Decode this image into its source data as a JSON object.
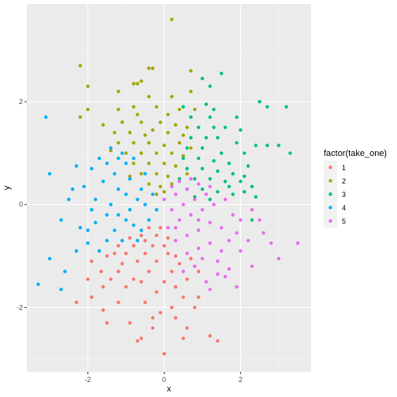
{
  "chart_data": {
    "type": "scatter",
    "title": "",
    "xlabel": "x",
    "ylabel": "y",
    "xlim": [
      -3.6,
      3.85
    ],
    "ylim": [
      -3.25,
      3.9
    ],
    "xticks": [
      -2,
      0,
      2
    ],
    "xtick_labels": [
      "-2",
      "0",
      "2"
    ],
    "yticks": [
      -2,
      0,
      2
    ],
    "ytick_labels": [
      "-2",
      "0",
      "2"
    ],
    "grid": true,
    "background": "#ebebeb",
    "legend": {
      "title": "factor(take_one)",
      "placement": "right"
    },
    "series": [
      {
        "name": "1",
        "color": "#f8766d",
        "points": [
          [
            0.0,
            -2.9
          ],
          [
            -0.7,
            -2.65
          ],
          [
            -0.6,
            -2.6
          ],
          [
            0.5,
            -2.6
          ],
          [
            1.2,
            -2.55
          ],
          [
            1.4,
            -2.65
          ],
          [
            -0.9,
            -2.3
          ],
          [
            -1.5,
            -2.3
          ],
          [
            -0.3,
            -2.2
          ],
          [
            0.3,
            -2.2
          ],
          [
            0.6,
            -2.4
          ],
          [
            -1.6,
            -2.05
          ],
          [
            -0.1,
            -2.1
          ],
          [
            0.2,
            -2.0
          ],
          [
            -2.3,
            -1.9
          ],
          [
            -1.9,
            -1.8
          ],
          [
            -1.2,
            -1.9
          ],
          [
            -0.5,
            -1.9
          ],
          [
            0.5,
            -1.8
          ],
          [
            0.9,
            -1.8
          ],
          [
            -1.6,
            -1.6
          ],
          [
            -1.0,
            -1.6
          ],
          [
            -0.2,
            -1.7
          ],
          [
            0.3,
            -1.6
          ],
          [
            -2.0,
            -1.45
          ],
          [
            -1.4,
            -1.45
          ],
          [
            -0.8,
            -1.45
          ],
          [
            -0.6,
            -1.5
          ],
          [
            0.0,
            -1.5
          ],
          [
            0.6,
            -1.45
          ],
          [
            -1.65,
            -1.3
          ],
          [
            -1.2,
            -1.3
          ],
          [
            -0.4,
            -1.3
          ],
          [
            0.2,
            -1.3
          ],
          [
            0.9,
            -1.3
          ],
          [
            -1.9,
            -1.1
          ],
          [
            -1.1,
            -1.15
          ],
          [
            -0.7,
            -1.1
          ],
          [
            -0.2,
            -1.1
          ],
          [
            0.4,
            -1.15
          ],
          [
            -1.3,
            -0.95
          ],
          [
            -1.0,
            -0.95
          ],
          [
            -0.5,
            -0.95
          ],
          [
            0.1,
            -0.95
          ],
          [
            0.3,
            -1.0
          ],
          [
            -1.2,
            -0.8
          ],
          [
            -0.8,
            -0.8
          ],
          [
            -0.3,
            -0.8
          ],
          [
            0.0,
            -0.8
          ],
          [
            -0.9,
            -0.65
          ],
          [
            -0.6,
            -0.6
          ],
          [
            -0.2,
            -0.6
          ],
          [
            0.1,
            -0.65
          ],
          [
            -0.4,
            -0.45
          ],
          [
            -0.1,
            -0.45
          ],
          [
            -0.5,
            -0.7
          ],
          [
            -1.5,
            -1.0
          ],
          [
            0.7,
            -1.05
          ],
          [
            -0.3,
            -2.4
          ],
          [
            0.8,
            -2.0
          ]
        ]
      },
      {
        "name": "2",
        "color": "#a3a500",
        "points": [
          [
            0.2,
            3.6
          ],
          [
            -2.2,
            2.7
          ],
          [
            -0.4,
            2.65
          ],
          [
            -0.3,
            2.65
          ],
          [
            0.7,
            2.6
          ],
          [
            -2.0,
            2.3
          ],
          [
            -0.8,
            2.35
          ],
          [
            -0.6,
            2.4
          ],
          [
            -0.7,
            2.35
          ],
          [
            -1.2,
            2.2
          ],
          [
            -0.4,
            2.1
          ],
          [
            0.2,
            2.1
          ],
          [
            0.7,
            2.2
          ],
          [
            -2.0,
            1.85
          ],
          [
            -1.2,
            1.85
          ],
          [
            -0.8,
            1.9
          ],
          [
            -0.2,
            1.9
          ],
          [
            0.4,
            1.85
          ],
          [
            0.8,
            1.85
          ],
          [
            -2.2,
            1.7
          ],
          [
            -1.6,
            1.55
          ],
          [
            -1.1,
            1.6
          ],
          [
            -0.6,
            1.6
          ],
          [
            -0.1,
            1.6
          ],
          [
            0.3,
            1.55
          ],
          [
            0.6,
            1.5
          ],
          [
            -1.3,
            1.4
          ],
          [
            -0.9,
            1.4
          ],
          [
            -0.5,
            1.35
          ],
          [
            0.1,
            1.4
          ],
          [
            0.5,
            1.35
          ],
          [
            -1.2,
            1.2
          ],
          [
            -0.8,
            1.2
          ],
          [
            -0.4,
            1.2
          ],
          [
            0.0,
            1.15
          ],
          [
            0.4,
            1.2
          ],
          [
            -1.0,
            1.0
          ],
          [
            -0.6,
            1.0
          ],
          [
            -0.2,
            1.0
          ],
          [
            0.2,
            1.0
          ],
          [
            0.5,
            0.95
          ],
          [
            -0.8,
            0.8
          ],
          [
            -0.4,
            0.8
          ],
          [
            0.0,
            0.8
          ],
          [
            0.3,
            0.75
          ],
          [
            -0.6,
            0.6
          ],
          [
            -0.2,
            0.6
          ],
          [
            0.1,
            0.55
          ],
          [
            -0.4,
            0.4
          ],
          [
            -0.1,
            0.35
          ],
          [
            0.2,
            0.4
          ],
          [
            -0.2,
            0.2
          ],
          [
            0.0,
            0.25
          ],
          [
            -0.7,
            1.75
          ],
          [
            0.1,
            1.75
          ],
          [
            -0.3,
            1.45
          ],
          [
            0.7,
            1.1
          ],
          [
            -1.4,
            1.05
          ],
          [
            -0.9,
            0.55
          ],
          [
            0.6,
            0.6
          ]
        ]
      },
      {
        "name": "3",
        "color": "#00bf7d",
        "points": [
          [
            1.0,
            2.45
          ],
          [
            1.5,
            2.55
          ],
          [
            1.2,
            2.3
          ],
          [
            2.5,
            2.0
          ],
          [
            2.7,
            1.9
          ],
          [
            3.2,
            1.9
          ],
          [
            1.1,
            1.95
          ],
          [
            0.7,
            1.7
          ],
          [
            1.2,
            1.7
          ],
          [
            1.9,
            1.7
          ],
          [
            0.9,
            1.5
          ],
          [
            1.3,
            1.5
          ],
          [
            1.6,
            1.5
          ],
          [
            2.0,
            1.45
          ],
          [
            0.7,
            1.3
          ],
          [
            1.1,
            1.3
          ],
          [
            1.4,
            1.3
          ],
          [
            1.9,
            1.2
          ],
          [
            2.4,
            1.15
          ],
          [
            2.7,
            1.15
          ],
          [
            3.0,
            1.15
          ],
          [
            3.3,
            1.0
          ],
          [
            0.6,
            1.1
          ],
          [
            1.0,
            1.1
          ],
          [
            1.5,
            1.0
          ],
          [
            2.1,
            1.0
          ],
          [
            0.5,
            0.9
          ],
          [
            0.9,
            0.9
          ],
          [
            1.3,
            0.85
          ],
          [
            1.7,
            0.8
          ],
          [
            2.2,
            0.75
          ],
          [
            0.6,
            0.7
          ],
          [
            1.0,
            0.7
          ],
          [
            1.4,
            0.65
          ],
          [
            1.8,
            0.6
          ],
          [
            0.4,
            0.5
          ],
          [
            0.8,
            0.5
          ],
          [
            1.2,
            0.5
          ],
          [
            1.6,
            0.45
          ],
          [
            2.0,
            0.45
          ],
          [
            2.3,
            0.35
          ],
          [
            2.4,
            0.15
          ],
          [
            0.6,
            0.3
          ],
          [
            1.0,
            0.3
          ],
          [
            1.4,
            0.25
          ],
          [
            1.8,
            0.2
          ],
          [
            2.1,
            0.25
          ],
          [
            0.8,
            0.15
          ],
          [
            1.2,
            0.1
          ],
          [
            2.3,
            -0.3
          ],
          [
            1.7,
            0.35
          ],
          [
            1.3,
            1.85
          ],
          [
            0.5,
            1.9
          ],
          [
            2.1,
            0.55
          ]
        ]
      },
      {
        "name": "4",
        "color": "#00b0f6",
        "points": [
          [
            -3.1,
            1.7
          ],
          [
            -3.0,
            0.6
          ],
          [
            -3.3,
            -1.55
          ],
          [
            -3.0,
            -1.05
          ],
          [
            -2.7,
            -1.65
          ],
          [
            -2.6,
            -1.3
          ],
          [
            -2.7,
            -0.3
          ],
          [
            -2.3,
            0.75
          ],
          [
            -2.1,
            0.35
          ],
          [
            -2.5,
            0.1
          ],
          [
            -2.2,
            -0.45
          ],
          [
            -2.0,
            -0.5
          ],
          [
            -1.8,
            -0.35
          ],
          [
            -2.3,
            -0.9
          ],
          [
            -2.0,
            -0.75
          ],
          [
            -1.7,
            -0.9
          ],
          [
            -1.9,
            0.7
          ],
          [
            -1.7,
            0.9
          ],
          [
            -1.8,
            0.1
          ],
          [
            -1.5,
            -0.2
          ],
          [
            -1.4,
            1.1
          ],
          [
            -1.5,
            0.8
          ],
          [
            -1.3,
            0.6
          ],
          [
            -1.2,
            0.3
          ],
          [
            -1.4,
            0.0
          ],
          [
            -1.3,
            -0.5
          ],
          [
            -1.1,
            -0.7
          ],
          [
            -1.2,
            0.9
          ],
          [
            -1.0,
            0.8
          ],
          [
            -0.9,
            0.5
          ],
          [
            -1.0,
            0.2
          ],
          [
            -0.9,
            -0.1
          ],
          [
            -0.8,
            -0.4
          ],
          [
            -0.6,
            -0.5
          ],
          [
            -1.1,
            1.0
          ],
          [
            -0.8,
            0.9
          ],
          [
            -0.6,
            0.3
          ],
          [
            -0.5,
            0.0
          ],
          [
            -0.4,
            -0.3
          ],
          [
            -0.3,
            0.2
          ],
          [
            -0.2,
            -0.1
          ],
          [
            -1.6,
            0.45
          ],
          [
            -1.0,
            -0.3
          ],
          [
            -0.7,
            0.1
          ],
          [
            -1.9,
            -0.1
          ],
          [
            -2.4,
            0.3
          ],
          [
            -1.5,
            -0.7
          ],
          [
            -1.2,
            -0.2
          ],
          [
            -0.5,
            0.6
          ],
          [
            -0.7,
            -0.7
          ]
        ]
      },
      {
        "name": "5",
        "color": "#e76bf3",
        "points": [
          [
            3.5,
            -0.75
          ],
          [
            3.0,
            -1.05
          ],
          [
            2.8,
            -0.75
          ],
          [
            2.2,
            -0.7
          ],
          [
            1.9,
            -0.55
          ],
          [
            2.0,
            -0.9
          ],
          [
            1.7,
            -1.25
          ],
          [
            2.3,
            -1.2
          ],
          [
            1.4,
            -1.35
          ],
          [
            1.1,
            -1.5
          ],
          [
            1.2,
            -1.65
          ],
          [
            1.6,
            -1.4
          ],
          [
            1.9,
            -1.6
          ],
          [
            0.8,
            -1.2
          ],
          [
            0.6,
            -0.95
          ],
          [
            0.9,
            -0.85
          ],
          [
            1.2,
            -0.75
          ],
          [
            1.5,
            -0.9
          ],
          [
            1.7,
            -0.7
          ],
          [
            2.0,
            -0.3
          ],
          [
            2.3,
            -0.1
          ],
          [
            2.5,
            -0.3
          ],
          [
            1.8,
            -0.2
          ],
          [
            1.5,
            -0.45
          ],
          [
            1.2,
            -0.35
          ],
          [
            0.9,
            -0.5
          ],
          [
            0.6,
            -0.6
          ],
          [
            0.3,
            -0.7
          ],
          [
            0.1,
            -0.45
          ],
          [
            0.4,
            -0.3
          ],
          [
            0.7,
            -0.2
          ],
          [
            1.0,
            -0.1
          ],
          [
            1.3,
            0.0
          ],
          [
            1.6,
            0.1
          ],
          [
            0.2,
            -0.1
          ],
          [
            0.5,
            0.0
          ],
          [
            0.8,
            0.1
          ],
          [
            1.1,
            0.2
          ],
          [
            0.0,
            0.1
          ],
          [
            0.3,
            0.2
          ],
          [
            0.6,
            0.3
          ],
          [
            0.9,
            0.4
          ],
          [
            1.2,
            0.35
          ],
          [
            0.4,
            0.45
          ],
          [
            0.7,
            0.5
          ],
          [
            0.2,
            0.35
          ],
          [
            0.9,
            -0.3
          ],
          [
            1.4,
            -1.1
          ],
          [
            0.5,
            -1.3
          ],
          [
            1.0,
            -1.05
          ],
          [
            2.6,
            -0.55
          ],
          [
            0.3,
            -0.45
          ]
        ]
      }
    ]
  }
}
